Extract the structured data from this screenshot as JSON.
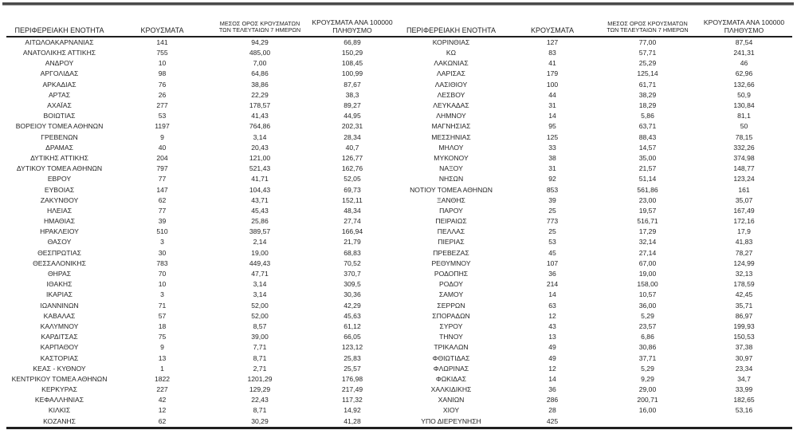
{
  "page": {
    "background_color": "#ffffff",
    "text_color": "#262626",
    "rule_color": "#1f1f1f"
  },
  "table": {
    "headers": {
      "region": "ΠΕΡΙΦΕΡΕΙΑΚΗ ΕΝΟΤΗΤΑ",
      "cases": "ΚΡΟΥΣΜΑΤΑ",
      "avg7_line1": "ΜΕΣΟΣ ΟΡΟΣ ΚΡΟΥΣΜΑΤΩΝ",
      "avg7_line2": "ΤΩΝ ΤΕΛΕΥΤΑΙΩΝ 7 ΗΜΕΡΩΝ",
      "per100k_line1": "ΚΡΟΥΣΜΑΤΑ ΑΝΑ 100000",
      "per100k_line2": "ΠΛΗΘΥΣΜΟ"
    },
    "left_rows": [
      [
        "ΑΙΤΩΛΟΑΚΑΡΝΑΝΙΑΣ",
        "141",
        "94,29",
        "66,89"
      ],
      [
        "ΑΝΑΤΟΛΙΚΗΣ ΑΤΤΙΚΗΣ",
        "755",
        "485,00",
        "150,29"
      ],
      [
        "ΑΝΔΡΟΥ",
        "10",
        "7,00",
        "108,45"
      ],
      [
        "ΑΡΓΟΛΙΔΑΣ",
        "98",
        "64,86",
        "100,99"
      ],
      [
        "ΑΡΚΑΔΙΑΣ",
        "76",
        "38,86",
        "87,67"
      ],
      [
        "ΑΡΤΑΣ",
        "26",
        "22,29",
        "38,3"
      ],
      [
        "ΑΧΑΪΑΣ",
        "277",
        "178,57",
        "89,27"
      ],
      [
        "ΒΟΙΩΤΙΑΣ",
        "53",
        "41,43",
        "44,95"
      ],
      [
        "ΒΟΡΕΙΟΥ ΤΟΜΕΑ ΑΘΗΝΩΝ",
        "1197",
        "764,86",
        "202,31"
      ],
      [
        "ΓΡΕΒΕΝΩΝ",
        "9",
        "3,14",
        "28,34"
      ],
      [
        "ΔΡΑΜΑΣ",
        "40",
        "20,43",
        "40,7"
      ],
      [
        "ΔΥΤΙΚΗΣ ΑΤΤΙΚΗΣ",
        "204",
        "121,00",
        "126,77"
      ],
      [
        "ΔΥΤΙΚΟΥ ΤΟΜΕΑ ΑΘΗΝΩΝ",
        "797",
        "521,43",
        "162,76"
      ],
      [
        "ΕΒΡΟΥ",
        "77",
        "41,71",
        "52,05"
      ],
      [
        "ΕΥΒΟΙΑΣ",
        "147",
        "104,43",
        "69,73"
      ],
      [
        "ΖΑΚΥΝΘΟΥ",
        "62",
        "43,71",
        "152,11"
      ],
      [
        "ΗΛΕΙΑΣ",
        "77",
        "45,43",
        "48,34"
      ],
      [
        "ΗΜΑΘΙΑΣ",
        "39",
        "25,86",
        "27,74"
      ],
      [
        "ΗΡΑΚΛΕΙΟΥ",
        "510",
        "389,57",
        "166,94"
      ],
      [
        "ΘΑΣΟΥ",
        "3",
        "2,14",
        "21,79"
      ],
      [
        "ΘΕΣΠΡΩΤΙΑΣ",
        "30",
        "19,00",
        "68,83"
      ],
      [
        "ΘΕΣΣΑΛΟΝΙΚΗΣ",
        "783",
        "449,43",
        "70,52"
      ],
      [
        "ΘΗΡΑΣ",
        "70",
        "47,71",
        "370,7"
      ],
      [
        "ΙΘΑΚΗΣ",
        "10",
        "3,14",
        "309,5"
      ],
      [
        "ΙΚΑΡΙΑΣ",
        "3",
        "3,14",
        "30,36"
      ],
      [
        "ΙΩΑΝΝΙΝΩΝ",
        "71",
        "52,00",
        "42,29"
      ],
      [
        "ΚΑΒΑΛΑΣ",
        "57",
        "52,00",
        "45,63"
      ],
      [
        "ΚΑΛΥΜΝΟΥ",
        "18",
        "8,57",
        "61,12"
      ],
      [
        "ΚΑΡΔΙΤΣΑΣ",
        "75",
        "39,00",
        "66,05"
      ],
      [
        "ΚΑΡΠΑΘΟΥ",
        "9",
        "7,71",
        "123,12"
      ],
      [
        "ΚΑΣΤΟΡΙΑΣ",
        "13",
        "8,71",
        "25,83"
      ],
      [
        "ΚΕΑΣ - ΚΥΘΝΟΥ",
        "1",
        "2,71",
        "25,57"
      ],
      [
        "ΚΕΝΤΡΙΚΟΥ ΤΟΜΕΑ ΑΘΗΝΩΝ",
        "1822",
        "1201,29",
        "176,98"
      ],
      [
        "ΚΕΡΚΥΡΑΣ",
        "227",
        "129,29",
        "217,49"
      ],
      [
        "ΚΕΦΑΛΛΗΝΙΑΣ",
        "42",
        "22,43",
        "117,32"
      ],
      [
        "ΚΙΛΚΙΣ",
        "12",
        "8,71",
        "14,92"
      ],
      [
        "ΚΟΖΑΝΗΣ",
        "62",
        "30,29",
        "41,28"
      ]
    ],
    "right_rows": [
      [
        "ΚΟΡΙΝΘΙΑΣ",
        "127",
        "77,00",
        "87,54"
      ],
      [
        "ΚΩ",
        "83",
        "57,71",
        "241,31"
      ],
      [
        "ΛΑΚΩΝΙΑΣ",
        "41",
        "25,29",
        "46"
      ],
      [
        "ΛΑΡΙΣΑΣ",
        "179",
        "125,14",
        "62,96"
      ],
      [
        "ΛΑΣΙΘΙΟΥ",
        "100",
        "61,71",
        "132,66"
      ],
      [
        "ΛΕΣΒΟΥ",
        "44",
        "38,29",
        "50,9"
      ],
      [
        "ΛΕΥΚΑΔΑΣ",
        "31",
        "18,29",
        "130,84"
      ],
      [
        "ΛΗΜΝΟΥ",
        "14",
        "5,86",
        "81,1"
      ],
      [
        "ΜΑΓΝΗΣΙΑΣ",
        "95",
        "63,71",
        "50"
      ],
      [
        "ΜΕΣΣΗΝΙΑΣ",
        "125",
        "88,43",
        "78,15"
      ],
      [
        "ΜΗΛΟΥ",
        "33",
        "14,57",
        "332,26"
      ],
      [
        "ΜΥΚΟΝΟΥ",
        "38",
        "35,00",
        "374,98"
      ],
      [
        "ΝΑΞΟΥ",
        "31",
        "21,57",
        "148,77"
      ],
      [
        "ΝΗΣΩΝ",
        "92",
        "51,14",
        "123,24"
      ],
      [
        "ΝΟΤΙΟΥ ΤΟΜΕΑ ΑΘΗΝΩΝ",
        "853",
        "561,86",
        "161"
      ],
      [
        "ΞΑΝΘΗΣ",
        "39",
        "23,00",
        "35,07"
      ],
      [
        "ΠΑΡΟΥ",
        "25",
        "19,57",
        "167,49"
      ],
      [
        "ΠΕΙΡΑΙΩΣ",
        "773",
        "516,71",
        "172,16"
      ],
      [
        "ΠΕΛΛΑΣ",
        "25",
        "17,29",
        "17,9"
      ],
      [
        "ΠΙΕΡΙΑΣ",
        "53",
        "32,14",
        "41,83"
      ],
      [
        "ΠΡΕΒΕΖΑΣ",
        "45",
        "27,14",
        "78,27"
      ],
      [
        "ΡΕΘΥΜΝΟΥ",
        "107",
        "67,00",
        "124,99"
      ],
      [
        "ΡΟΔΟΠΗΣ",
        "36",
        "19,00",
        "32,13"
      ],
      [
        "ΡΟΔΟΥ",
        "214",
        "158,00",
        "178,59"
      ],
      [
        "ΣΑΜΟΥ",
        "14",
        "10,57",
        "42,45"
      ],
      [
        "ΣΕΡΡΩΝ",
        "63",
        "36,00",
        "35,71"
      ],
      [
        "ΣΠΟΡΑΔΩΝ",
        "12",
        "5,29",
        "86,97"
      ],
      [
        "ΣΥΡΟΥ",
        "43",
        "23,57",
        "199,93"
      ],
      [
        "ΤΗΝΟΥ",
        "13",
        "6,86",
        "150,53"
      ],
      [
        "ΤΡΙΚΑΛΩΝ",
        "49",
        "30,86",
        "37,38"
      ],
      [
        "ΦΘΙΩΤΙΔΑΣ",
        "49",
        "37,71",
        "30,97"
      ],
      [
        "ΦΛΩΡΙΝΑΣ",
        "12",
        "5,29",
        "23,34"
      ],
      [
        "ΦΩΚΙΔΑΣ",
        "14",
        "9,29",
        "34,7"
      ],
      [
        "ΧΑΛΚΙΔΙΚΗΣ",
        "36",
        "29,00",
        "33,99"
      ],
      [
        "ΧΑΝΙΩΝ",
        "286",
        "200,71",
        "182,65"
      ],
      [
        "ΧΙΟΥ",
        "28",
        "16,00",
        "53,16"
      ],
      [
        "ΥΠΟ ΔΙΕΡΕΥΝΗΣΗ",
        "425",
        "",
        ""
      ]
    ]
  }
}
